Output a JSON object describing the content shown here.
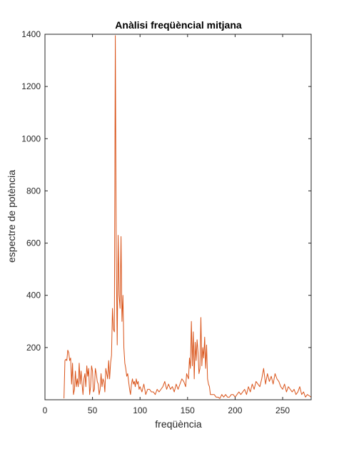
{
  "chart_data": {
    "type": "line",
    "title": "Anàlisi freqüèncial mitjana",
    "xlabel": "freqüència",
    "ylabel": "espectre de potència",
    "xlim": [
      0,
      280
    ],
    "ylim": [
      0,
      1400
    ],
    "xticks": [
      0,
      50,
      100,
      150,
      200,
      250
    ],
    "yticks": [
      200,
      400,
      600,
      800,
      1000,
      1200,
      1400
    ],
    "grid": false,
    "colors": {
      "line": "#d95319",
      "axes": "#262626",
      "background": "#ffffff"
    },
    "series": [
      {
        "x": [
          20,
          21,
          22,
          23,
          24,
          25,
          26,
          27,
          28,
          29,
          30,
          31,
          32,
          33,
          34,
          35,
          36,
          37,
          38,
          39,
          40,
          41,
          42,
          43,
          44,
          45,
          46,
          47,
          48,
          49,
          50,
          51,
          52,
          53,
          54,
          55,
          56,
          57,
          58,
          59,
          60,
          61,
          62,
          63,
          64,
          65,
          66,
          67,
          68,
          69,
          70,
          71,
          72,
          73,
          74,
          75,
          76,
          77,
          78,
          79,
          80,
          81,
          82,
          83,
          84,
          85,
          86,
          87,
          88,
          89,
          90,
          91,
          92,
          93,
          94,
          95,
          96,
          97,
          98,
          99,
          100,
          102,
          104,
          106,
          108,
          110,
          112,
          114,
          116,
          118,
          120,
          122,
          124,
          126,
          128,
          130,
          132,
          134,
          136,
          138,
          140,
          142,
          144,
          146,
          148,
          149,
          150,
          151,
          152,
          153,
          154,
          155,
          156,
          157,
          158,
          159,
          160,
          161,
          162,
          163,
          164,
          165,
          166,
          167,
          168,
          169,
          170,
          171,
          172,
          173,
          174,
          176,
          178,
          180,
          182,
          184,
          186,
          188,
          190,
          192,
          194,
          196,
          198,
          200,
          202,
          204,
          206,
          208,
          210,
          212,
          214,
          216,
          218,
          220,
          222,
          224,
          226,
          228,
          230,
          232,
          234,
          236,
          238,
          240,
          242,
          244,
          246,
          248,
          250,
          252,
          254,
          256,
          258,
          260,
          262,
          264,
          266,
          268,
          270,
          272,
          274,
          276,
          278,
          280
        ],
        "y": [
          5,
          150,
          155,
          150,
          190,
          180,
          150,
          160,
          60,
          140,
          20,
          40,
          110,
          50,
          80,
          50,
          140,
          60,
          110,
          60,
          20,
          80,
          100,
          50,
          130,
          90,
          120,
          20,
          50,
          130,
          110,
          30,
          40,
          120,
          100,
          70,
          60,
          20,
          40,
          100,
          50,
          80,
          70,
          30,
          120,
          100,
          80,
          150,
          80,
          140,
          170,
          350,
          270,
          260,
          1395,
          550,
          210,
          630,
          400,
          350,
          625,
          300,
          400,
          200,
          140,
          120,
          90,
          100,
          70,
          40,
          20,
          60,
          80,
          60,
          70,
          50,
          80,
          60,
          70,
          40,
          50,
          30,
          60,
          20,
          40,
          40,
          30,
          30,
          20,
          40,
          30,
          40,
          50,
          70,
          40,
          60,
          40,
          50,
          30,
          60,
          40,
          60,
          80,
          70,
          50,
          100,
          90,
          80,
          160,
          120,
          300,
          130,
          260,
          80,
          220,
          150,
          230,
          180,
          100,
          120,
          315,
          130,
          200,
          160,
          240,
          120,
          210,
          80,
          60,
          50,
          20,
          20,
          20,
          10,
          10,
          5,
          20,
          10,
          20,
          10,
          10,
          20,
          20,
          10,
          20,
          30,
          20,
          30,
          40,
          20,
          50,
          30,
          60,
          40,
          70,
          60,
          50,
          80,
          120,
          60,
          100,
          70,
          90,
          60,
          100,
          80,
          70,
          50,
          40,
          60,
          30,
          50,
          40,
          30,
          40,
          20,
          30,
          50,
          20,
          30,
          10,
          20,
          15,
          10
        ]
      }
    ]
  }
}
